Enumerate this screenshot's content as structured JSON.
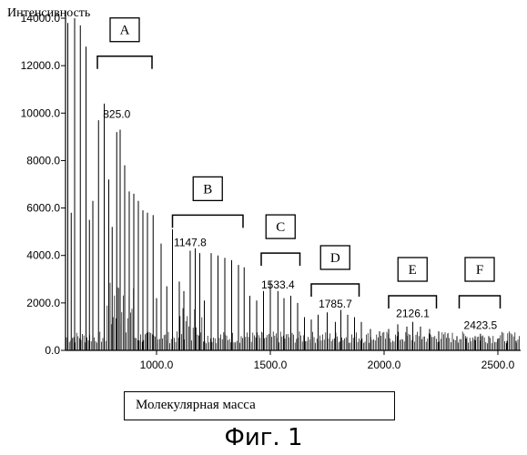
{
  "chart_data": {
    "type": "bar",
    "title": "",
    "ylabel": "Интенсивность",
    "xlabel": "Молекулярная масса",
    "ylim": [
      0,
      14000
    ],
    "xlim": [
      600,
      2600
    ],
    "y_ticks": [
      "0.0",
      "2000.0",
      "4000.0",
      "6000.0",
      "8000.0",
      "10000.0",
      "12000.0",
      "14000.0"
    ],
    "y_tick_values": [
      0,
      2000,
      4000,
      6000,
      8000,
      10000,
      12000,
      14000
    ],
    "x_ticks": [
      "1000.0",
      "1500.0",
      "2000.0",
      "2500.0"
    ],
    "x_tick_values": [
      1000,
      1500,
      2000,
      2500
    ],
    "peaks": [
      {
        "x": 610,
        "y": 13800
      },
      {
        "x": 625,
        "y": 5800
      },
      {
        "x": 640,
        "y": 14000
      },
      {
        "x": 665,
        "y": 13700
      },
      {
        "x": 690,
        "y": 12800
      },
      {
        "x": 705,
        "y": 5500
      },
      {
        "x": 720,
        "y": 6300
      },
      {
        "x": 745,
        "y": 9700
      },
      {
        "x": 770,
        "y": 10400
      },
      {
        "x": 790,
        "y": 7200
      },
      {
        "x": 805,
        "y": 5200
      },
      {
        "x": 825,
        "y": 9200
      },
      {
        "x": 840,
        "y": 9300
      },
      {
        "x": 860,
        "y": 7800
      },
      {
        "x": 880,
        "y": 6700
      },
      {
        "x": 900,
        "y": 6600
      },
      {
        "x": 920,
        "y": 6300
      },
      {
        "x": 940,
        "y": 5900
      },
      {
        "x": 960,
        "y": 5800
      },
      {
        "x": 985,
        "y": 5700
      },
      {
        "x": 1000,
        "y": 2200
      },
      {
        "x": 1020,
        "y": 4500
      },
      {
        "x": 1045,
        "y": 2700
      },
      {
        "x": 1070,
        "y": 5100
      },
      {
        "x": 1100,
        "y": 2900
      },
      {
        "x": 1120,
        "y": 2500
      },
      {
        "x": 1147.8,
        "y": 4200
      },
      {
        "x": 1170,
        "y": 4300
      },
      {
        "x": 1190,
        "y": 4100
      },
      {
        "x": 1210,
        "y": 2100
      },
      {
        "x": 1240,
        "y": 4100
      },
      {
        "x": 1270,
        "y": 4000
      },
      {
        "x": 1300,
        "y": 3900
      },
      {
        "x": 1330,
        "y": 3800
      },
      {
        "x": 1360,
        "y": 3600
      },
      {
        "x": 1385,
        "y": 3500
      },
      {
        "x": 1410,
        "y": 2300
      },
      {
        "x": 1440,
        "y": 2100
      },
      {
        "x": 1470,
        "y": 2500
      },
      {
        "x": 1500,
        "y": 2900
      },
      {
        "x": 1533.4,
        "y": 2500
      },
      {
        "x": 1560,
        "y": 2200
      },
      {
        "x": 1590,
        "y": 2300
      },
      {
        "x": 1620,
        "y": 2000
      },
      {
        "x": 1650,
        "y": 1400
      },
      {
        "x": 1680,
        "y": 1300
      },
      {
        "x": 1710,
        "y": 1500
      },
      {
        "x": 1750,
        "y": 1600
      },
      {
        "x": 1785.7,
        "y": 1200
      },
      {
        "x": 1810,
        "y": 1700
      },
      {
        "x": 1840,
        "y": 1500
      },
      {
        "x": 1870,
        "y": 1400
      },
      {
        "x": 1900,
        "y": 1200
      },
      {
        "x": 1940,
        "y": 900
      },
      {
        "x": 1980,
        "y": 800
      },
      {
        "x": 2020,
        "y": 900
      },
      {
        "x": 2060,
        "y": 1100
      },
      {
        "x": 2100,
        "y": 1000
      },
      {
        "x": 2126.1,
        "y": 1200
      },
      {
        "x": 2160,
        "y": 1000
      },
      {
        "x": 2200,
        "y": 900
      },
      {
        "x": 2240,
        "y": 800
      },
      {
        "x": 2280,
        "y": 700
      },
      {
        "x": 2320,
        "y": 600
      },
      {
        "x": 2360,
        "y": 500
      },
      {
        "x": 2400,
        "y": 600
      },
      {
        "x": 2423.5,
        "y": 700
      },
      {
        "x": 2460,
        "y": 600
      },
      {
        "x": 2500,
        "y": 500
      },
      {
        "x": 2540,
        "y": 400
      },
      {
        "x": 2580,
        "y": 400
      }
    ],
    "peak_labels": [
      {
        "x": 825.0,
        "y": 9800,
        "text": "825.0"
      },
      {
        "x": 1147.8,
        "y": 4400,
        "text": "1147.8"
      },
      {
        "x": 1533.4,
        "y": 2600,
        "text": "1533.4"
      },
      {
        "x": 1785.7,
        "y": 1800,
        "text": "1785.7"
      },
      {
        "x": 2126.1,
        "y": 1400,
        "text": "2126.1"
      },
      {
        "x": 2423.5,
        "y": 900,
        "text": "2423.5"
      }
    ],
    "groups": [
      {
        "label": "A",
        "x_start": 740,
        "x_end": 980,
        "y": 12400
      },
      {
        "label": "B",
        "x_start": 1070,
        "x_end": 1380,
        "y": 5700
      },
      {
        "label": "C",
        "x_start": 1460,
        "x_end": 1630,
        "y": 4100
      },
      {
        "label": "D",
        "x_start": 1680,
        "x_end": 1890,
        "y": 2800
      },
      {
        "label": "E",
        "x_start": 2020,
        "x_end": 2230,
        "y": 2300
      },
      {
        "label": "F",
        "x_start": 2330,
        "x_end": 2510,
        "y": 2300
      }
    ],
    "grid": false,
    "legend": "none"
  },
  "caption": "Фиг. 1"
}
